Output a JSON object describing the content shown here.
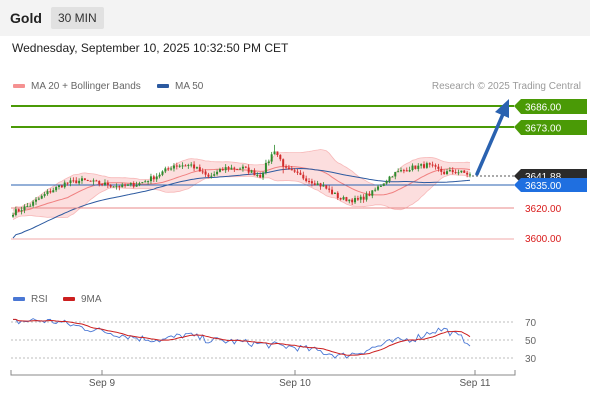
{
  "header": {
    "symbol": "Gold",
    "timeframe": "30 MIN"
  },
  "datetime": "Wednesday, September 10, 2025 10:32:50 PM CET",
  "legend": {
    "ma20_label": "MA 20 + Bollinger Bands",
    "ma50_label": "MA 50",
    "credit": "Research © 2025 Trading Central"
  },
  "levels": [
    {
      "value": "3686.00",
      "kind": "resistance",
      "color": "#4a9a06"
    },
    {
      "value": "3673.00",
      "kind": "resistance",
      "color": "#4a9a06"
    },
    {
      "value": "3641.88",
      "kind": "last-price",
      "color": "#2b2b2b"
    },
    {
      "value": "3635.00",
      "kind": "pivot",
      "color": "#1f6fe0"
    },
    {
      "value": "3620.00",
      "kind": "support",
      "color": "#d91a1a"
    },
    {
      "value": "3600.00",
      "kind": "support",
      "color": "#d91a1a"
    }
  ],
  "rsi": {
    "rsi_label": "RSI",
    "ma_label": "9MA",
    "ticks": [
      "70",
      "50",
      "30"
    ]
  },
  "xaxis": {
    "labels": [
      "Sep 9",
      "Sep 10",
      "Sep 11"
    ]
  },
  "colors": {
    "bull": "#2e8b2e",
    "bear": "#d22b2b",
    "ma20": "#f08080",
    "ma50": "#2c5aa0",
    "band": "#fbd3d3",
    "arrow": "#2a62b0",
    "rsi": "#4a77d4",
    "rsi_ma": "#cc1f1f"
  },
  "chart_data": {
    "type": "candlestick",
    "yrange": [
      3583,
      3697
    ],
    "bars": 160,
    "trend_arrow": {
      "from": 3641.88,
      "to": 3686.0
    }
  }
}
